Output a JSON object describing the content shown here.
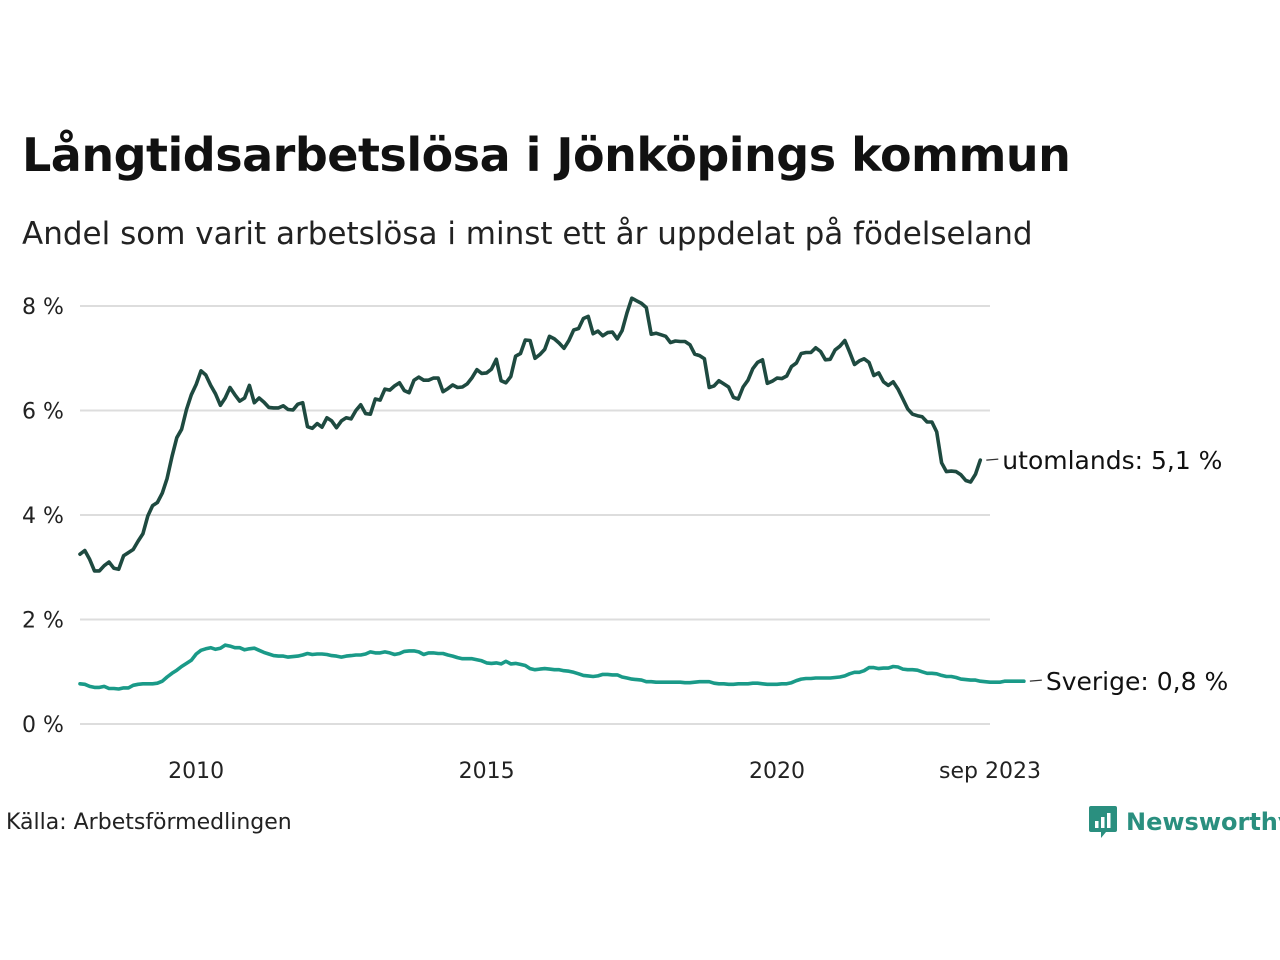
{
  "chart_data": {
    "type": "line",
    "title": "Långtidsarbetslösa i Jönköpings kommun",
    "subtitle": "Andel som varit arbetslösa i minst ett år uppdelat på födelseland",
    "source": "Källa: Arbetsförmedlingen",
    "brand": "Newsworthy",
    "x_start": 2008.0,
    "x_step_months": 1,
    "xlim": [
      2008.0,
      2023.667
    ],
    "ylim": [
      0,
      8.3
    ],
    "y_ticks": [
      {
        "value": 0,
        "label": "0 %"
      },
      {
        "value": 2,
        "label": "2 %"
      },
      {
        "value": 4,
        "label": "4 %"
      },
      {
        "value": 6,
        "label": "6 %"
      },
      {
        "value": 8,
        "label": "8 %"
      }
    ],
    "x_ticks": [
      {
        "value": 2010,
        "label": "2010"
      },
      {
        "value": 2015,
        "label": "2015"
      },
      {
        "value": 2020,
        "label": "2020"
      },
      {
        "value": 2023.667,
        "label": "sep 2023"
      }
    ],
    "grid": true,
    "series": [
      {
        "name": "utomlands",
        "end_label": "utomlands: 5,1 %",
        "color": "#1e4a40",
        "values": [
          3.25,
          3.32,
          3.15,
          2.93,
          2.93,
          3.03,
          3.1,
          2.98,
          2.96,
          3.22,
          3.28,
          3.34,
          3.5,
          3.64,
          3.98,
          4.18,
          4.24,
          4.42,
          4.7,
          5.12,
          5.48,
          5.64,
          6.02,
          6.3,
          6.5,
          6.76,
          6.68,
          6.48,
          6.32,
          6.1,
          6.24,
          6.44,
          6.3,
          6.18,
          6.24,
          6.48,
          6.15,
          6.24,
          6.16,
          6.06,
          6.05,
          6.05,
          6.09,
          6.02,
          6.01,
          6.12,
          6.15,
          5.69,
          5.66,
          5.75,
          5.68,
          5.86,
          5.8,
          5.67,
          5.8,
          5.86,
          5.84,
          6.0,
          6.11,
          5.94,
          5.93,
          6.22,
          6.2,
          6.41,
          6.39,
          6.47,
          6.53,
          6.38,
          6.34,
          6.58,
          6.64,
          6.58,
          6.58,
          6.62,
          6.62,
          6.36,
          6.42,
          6.49,
          6.44,
          6.45,
          6.51,
          6.63,
          6.78,
          6.71,
          6.72,
          6.79,
          6.98,
          6.57,
          6.53,
          6.65,
          7.04,
          7.09,
          7.35,
          7.34,
          7.0,
          7.07,
          7.17,
          7.42,
          7.37,
          7.29,
          7.19,
          7.34,
          7.54,
          7.57,
          7.76,
          7.8,
          7.47,
          7.52,
          7.43,
          7.49,
          7.5,
          7.37,
          7.53,
          7.87,
          8.15,
          8.1,
          8.05,
          7.97,
          7.46,
          7.48,
          7.45,
          7.42,
          7.3,
          7.33,
          7.32,
          7.32,
          7.26,
          7.08,
          7.05,
          6.99,
          6.44,
          6.47,
          6.57,
          6.51,
          6.45,
          6.25,
          6.22,
          6.45,
          6.58,
          6.8,
          6.92,
          6.97,
          6.52,
          6.56,
          6.62,
          6.61,
          6.66,
          6.84,
          6.91,
          7.09,
          7.11,
          7.11,
          7.2,
          7.13,
          6.97,
          6.98,
          7.16,
          7.23,
          7.34,
          7.12,
          6.88,
          6.95,
          6.99,
          6.92,
          6.67,
          6.72,
          6.55,
          6.48,
          6.55,
          6.41,
          6.22,
          6.03,
          5.93,
          5.9,
          5.88,
          5.78,
          5.78,
          5.59,
          5.0,
          4.83,
          4.84,
          4.83,
          4.77,
          4.66,
          4.63,
          4.78,
          5.05
        ]
      },
      {
        "name": "Sverige",
        "end_label": "Sverige: 0,8 %",
        "color": "#1a9a88",
        "values": [
          0.77,
          0.76,
          0.72,
          0.7,
          0.7,
          0.72,
          0.68,
          0.68,
          0.67,
          0.69,
          0.69,
          0.74,
          0.76,
          0.77,
          0.77,
          0.77,
          0.78,
          0.82,
          0.9,
          0.97,
          1.03,
          1.1,
          1.16,
          1.22,
          1.34,
          1.41,
          1.44,
          1.46,
          1.43,
          1.45,
          1.51,
          1.49,
          1.46,
          1.46,
          1.42,
          1.44,
          1.45,
          1.41,
          1.37,
          1.34,
          1.31,
          1.3,
          1.3,
          1.28,
          1.29,
          1.3,
          1.32,
          1.35,
          1.33,
          1.34,
          1.34,
          1.33,
          1.31,
          1.3,
          1.28,
          1.3,
          1.31,
          1.32,
          1.32,
          1.34,
          1.38,
          1.36,
          1.36,
          1.38,
          1.36,
          1.33,
          1.35,
          1.39,
          1.4,
          1.4,
          1.38,
          1.33,
          1.36,
          1.36,
          1.35,
          1.35,
          1.32,
          1.3,
          1.27,
          1.25,
          1.25,
          1.25,
          1.23,
          1.21,
          1.17,
          1.16,
          1.17,
          1.15,
          1.2,
          1.15,
          1.16,
          1.14,
          1.12,
          1.06,
          1.04,
          1.05,
          1.06,
          1.05,
          1.04,
          1.04,
          1.02,
          1.01,
          0.99,
          0.96,
          0.93,
          0.92,
          0.91,
          0.92,
          0.95,
          0.95,
          0.94,
          0.94,
          0.9,
          0.88,
          0.86,
          0.85,
          0.84,
          0.81,
          0.81,
          0.8,
          0.8,
          0.8,
          0.8,
          0.8,
          0.8,
          0.79,
          0.79,
          0.8,
          0.81,
          0.81,
          0.81,
          0.78,
          0.77,
          0.77,
          0.76,
          0.76,
          0.77,
          0.77,
          0.77,
          0.78,
          0.78,
          0.77,
          0.76,
          0.76,
          0.76,
          0.77,
          0.77,
          0.79,
          0.83,
          0.86,
          0.87,
          0.87,
          0.88,
          0.88,
          0.88,
          0.88,
          0.89,
          0.9,
          0.92,
          0.96,
          0.99,
          0.99,
          1.02,
          1.08,
          1.08,
          1.06,
          1.07,
          1.07,
          1.1,
          1.09,
          1.05,
          1.04,
          1.04,
          1.03,
          1.0,
          0.97,
          0.97,
          0.96,
          0.93,
          0.91,
          0.91,
          0.89,
          0.86,
          0.85,
          0.84,
          0.84,
          0.82,
          0.81,
          0.8,
          0.8,
          0.8,
          0.82,
          0.82,
          0.82,
          0.82,
          0.82
        ]
      }
    ]
  },
  "colors": {
    "grid": "#dddddd",
    "axis_text": "#222222",
    "brand": "#2a8f7f"
  }
}
